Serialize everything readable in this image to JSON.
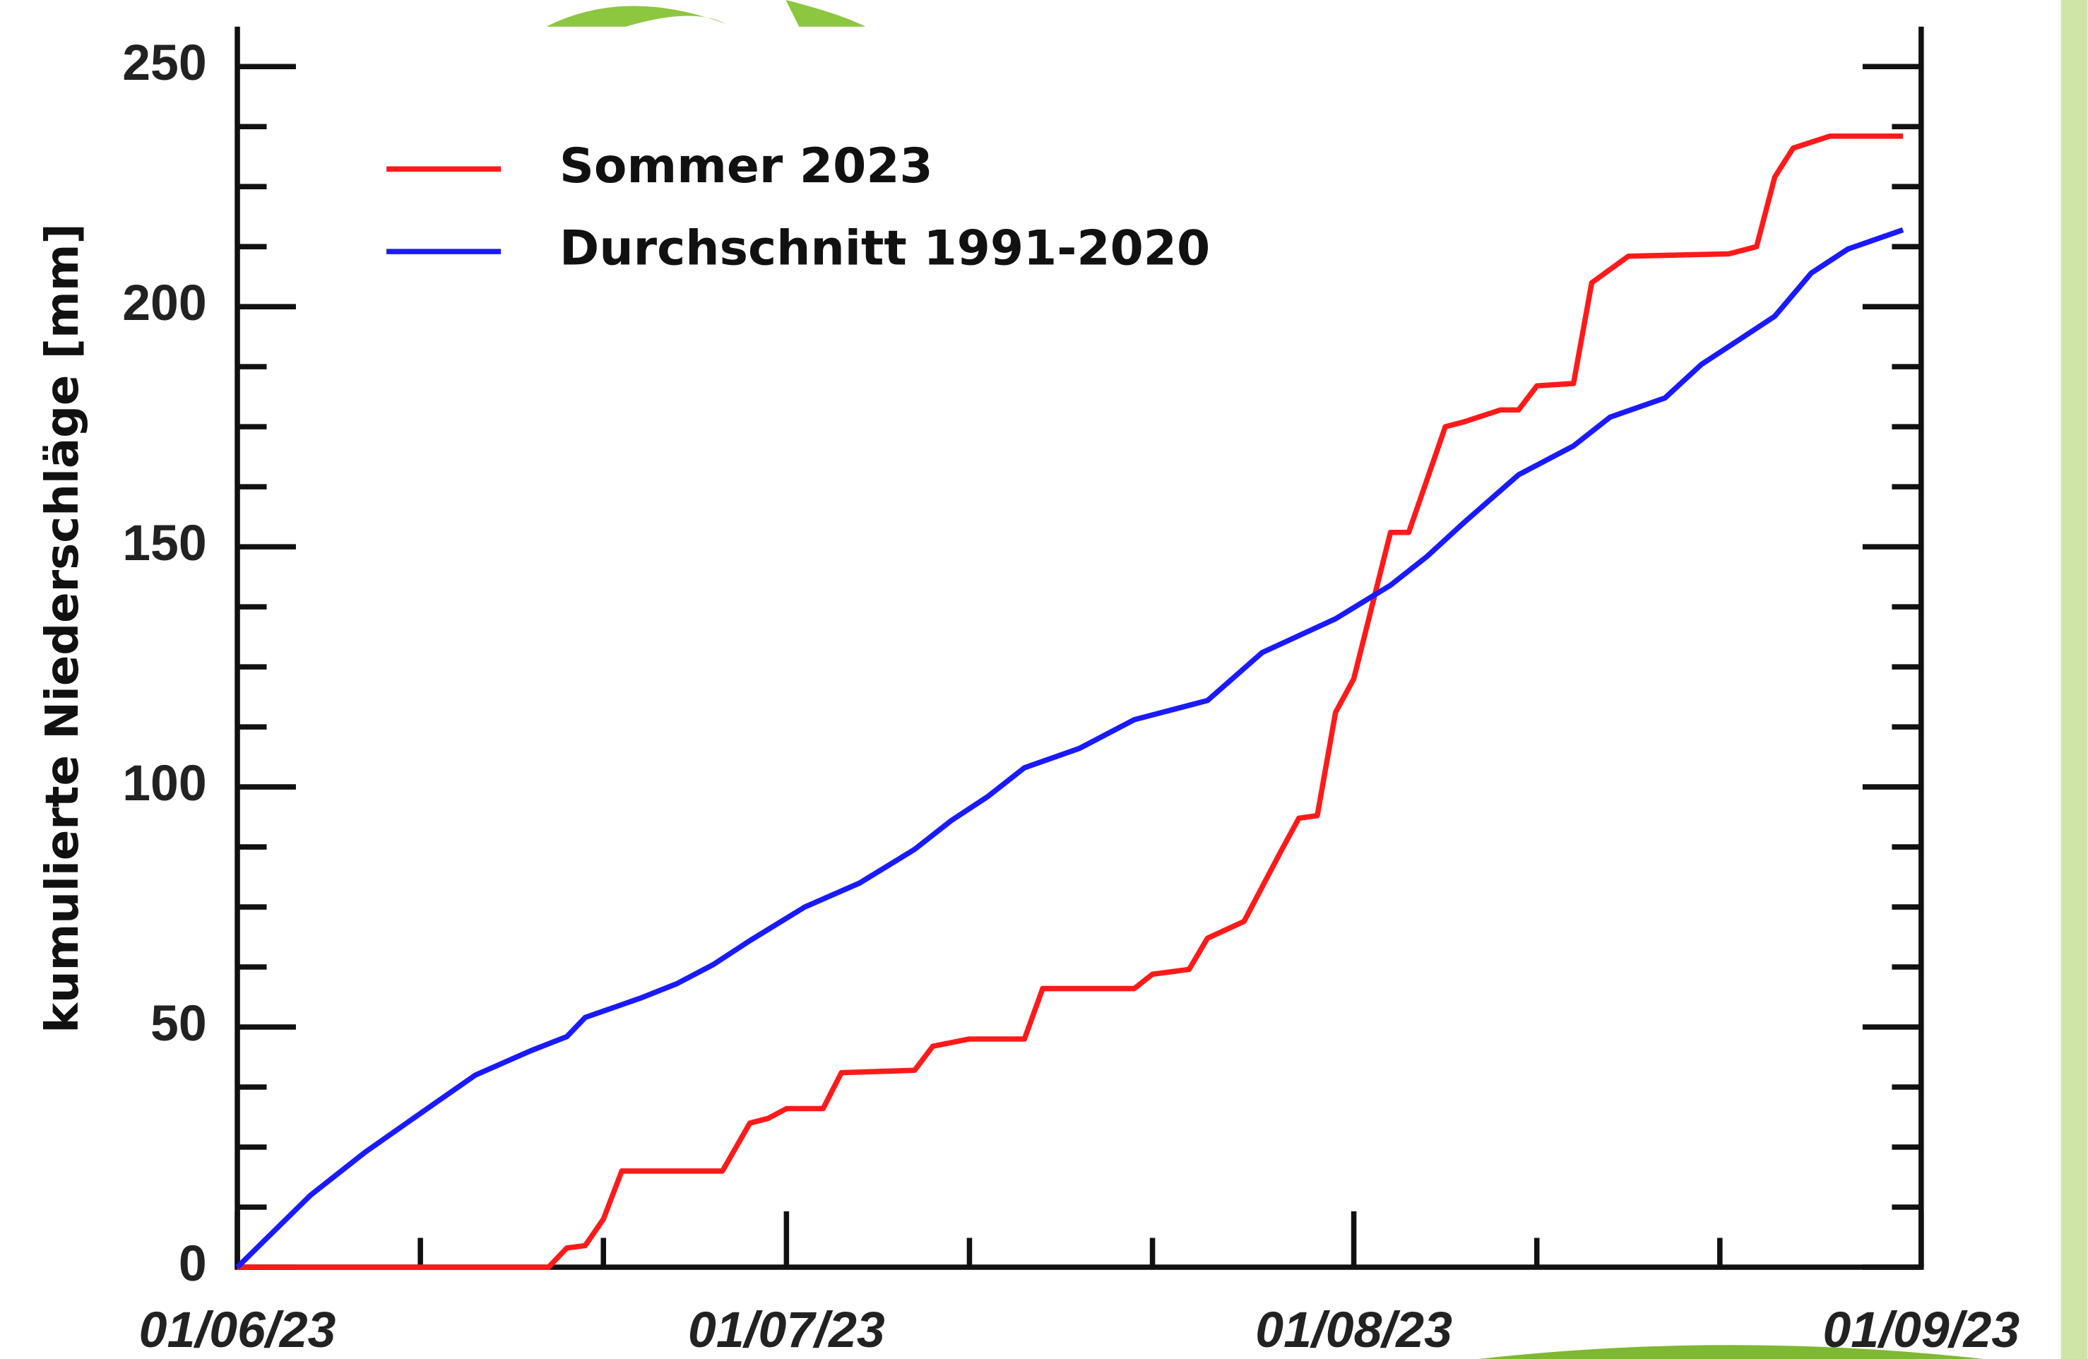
{
  "chart_data": {
    "type": "line",
    "y_label": "kumulierte Niederschläge [mm]",
    "xlim": [
      0,
      92
    ],
    "xticks": [
      {
        "value": 0,
        "label": "01/06/23"
      },
      {
        "value": 30,
        "label": "01/07/23"
      },
      {
        "value": 61,
        "label": "01/08/23"
      },
      {
        "value": 92,
        "label": "01/09/23"
      }
    ],
    "xminor": [
      10,
      20,
      40,
      50,
      71,
      81
    ],
    "ylim": [
      0,
      250
    ],
    "yticks": [
      0,
      50,
      100,
      150,
      200,
      250
    ],
    "yminor": [
      12.5,
      25,
      37.5,
      62.5,
      75,
      87.5,
      112.5,
      125,
      137.5,
      162.5,
      175,
      187.5,
      212.5,
      225,
      237.5
    ],
    "legend": "top-left",
    "series": [
      {
        "name": "Sommer 2023",
        "color": "#ff1a1a",
        "x": [
          0,
          17,
          18,
          19,
          20,
          21,
          26.5,
          28,
          29,
          30,
          32,
          33,
          37,
          38,
          40,
          43,
          44,
          49,
          50,
          52,
          53,
          55,
          57,
          58,
          59,
          60,
          61,
          63,
          64,
          66,
          67,
          69,
          70,
          71,
          73,
          74,
          76,
          81.5,
          83,
          84,
          85,
          87,
          91
        ],
        "values": [
          0,
          0,
          4,
          4.5,
          10,
          20,
          20,
          30,
          31,
          33,
          33,
          40.5,
          41,
          46,
          47.5,
          47.5,
          58,
          58,
          61,
          62,
          68.5,
          72,
          86.5,
          93.5,
          94,
          115.5,
          122.5,
          153,
          153,
          175,
          176,
          178.5,
          178.5,
          183.5,
          184,
          205,
          210.5,
          211,
          212.5,
          227,
          233,
          235.5,
          235.5
        ]
      },
      {
        "name": "Durchschnitt 1991-2020",
        "color": "#1a1aff",
        "x": [
          0,
          4,
          7,
          10,
          13,
          16,
          18,
          19,
          22,
          24,
          26,
          28,
          31,
          34,
          37,
          39,
          41,
          43,
          46,
          49,
          52,
          53,
          56,
          60,
          63,
          65,
          67,
          70,
          73,
          75,
          78,
          80,
          82,
          84,
          86,
          88,
          91
        ],
        "values": [
          0,
          15,
          24,
          32,
          40,
          45,
          48,
          52,
          56,
          59,
          63,
          68,
          75,
          80,
          87,
          93,
          98,
          104,
          108,
          114,
          117,
          118,
          128,
          135,
          142,
          148,
          155,
          165,
          171,
          177,
          181,
          188,
          193,
          198,
          207,
          212,
          216
        ]
      }
    ]
  }
}
